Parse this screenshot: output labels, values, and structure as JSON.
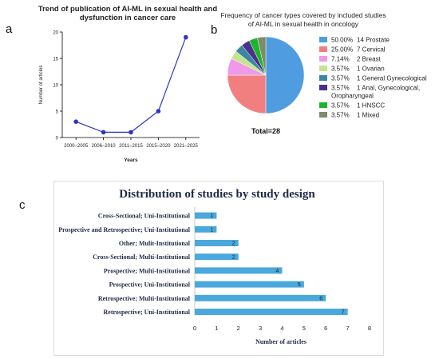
{
  "panels": {
    "a": "a",
    "b": "b",
    "c": "c"
  },
  "chart_data": [
    {
      "type": "line",
      "title_lines": [
        "Trend of publication of AI-ML in sexual health and",
        "dysfunction in cancer care"
      ],
      "xlabel": "Years",
      "ylabel": "Number of articles",
      "categories": [
        "2000–2005",
        "2006–2010",
        "2011–2015",
        "2015–2020",
        "2021–2025"
      ],
      "values": [
        3,
        1,
        1,
        5,
        19
      ],
      "ylim": [
        0,
        20
      ],
      "yticks": [
        0,
        5,
        10,
        15,
        20
      ],
      "color": "#2d35c8"
    },
    {
      "type": "pie",
      "title_lines": [
        "Frequency of cancer types covered by included studies",
        "of AI-ML in sexual health in oncology"
      ],
      "total_label": "Total=28",
      "slices": [
        {
          "pct": "50.00%",
          "count": 14,
          "label_lines": [
            "14 Prostate"
          ],
          "color": "#4f9ce0"
        },
        {
          "pct": "25.00%",
          "count": 7,
          "label_lines": [
            "7 Cervical"
          ],
          "color": "#f27f7f"
        },
        {
          "pct": "7.14%",
          "count": 2,
          "label_lines": [
            "2 Breast"
          ],
          "color": "#ee9ae8"
        },
        {
          "pct": "3.57%",
          "count": 1,
          "label_lines": [
            "1 Ovarian"
          ],
          "color": "#c6e48f"
        },
        {
          "pct": "3.57%",
          "count": 1,
          "label_lines": [
            "1 General Gynecological"
          ],
          "color": "#3c87a0"
        },
        {
          "pct": "3.57%",
          "count": 1,
          "label_lines": [
            "1 Anal, Gynecological,",
            "Oropharyngeal"
          ],
          "color": "#4b2f8c"
        },
        {
          "pct": "3.57%",
          "count": 1,
          "label_lines": [
            "1 HNSCC"
          ],
          "color": "#1ab52d"
        },
        {
          "pct": "3.57%",
          "count": 1,
          "label_lines": [
            "1 Mixed"
          ],
          "color": "#7e8c6a"
        }
      ]
    },
    {
      "type": "bar",
      "orientation": "horizontal",
      "title": "Distribution of studies by study design",
      "xlabel": "Number of articles",
      "xlim": [
        0,
        8
      ],
      "xticks": [
        0,
        1,
        2,
        3,
        4,
        5,
        6,
        7,
        8
      ],
      "categories": [
        "Cross-Sectional; Uni-Institutional",
        "Prospective and Retrospective; Uni-Institutional",
        "Other; Mulit-Institutional",
        "Cross-Sectional; Multi-Institutional",
        "Prospective; Multi-Institutional",
        "Prospective; Uni-Institutional",
        "Retrospective; Multi-Institutional",
        "Retrospective; Uni-Institutional"
      ],
      "values": [
        1,
        1,
        2,
        2,
        4,
        5,
        6,
        7
      ],
      "color": "#4aa8dc"
    }
  ]
}
